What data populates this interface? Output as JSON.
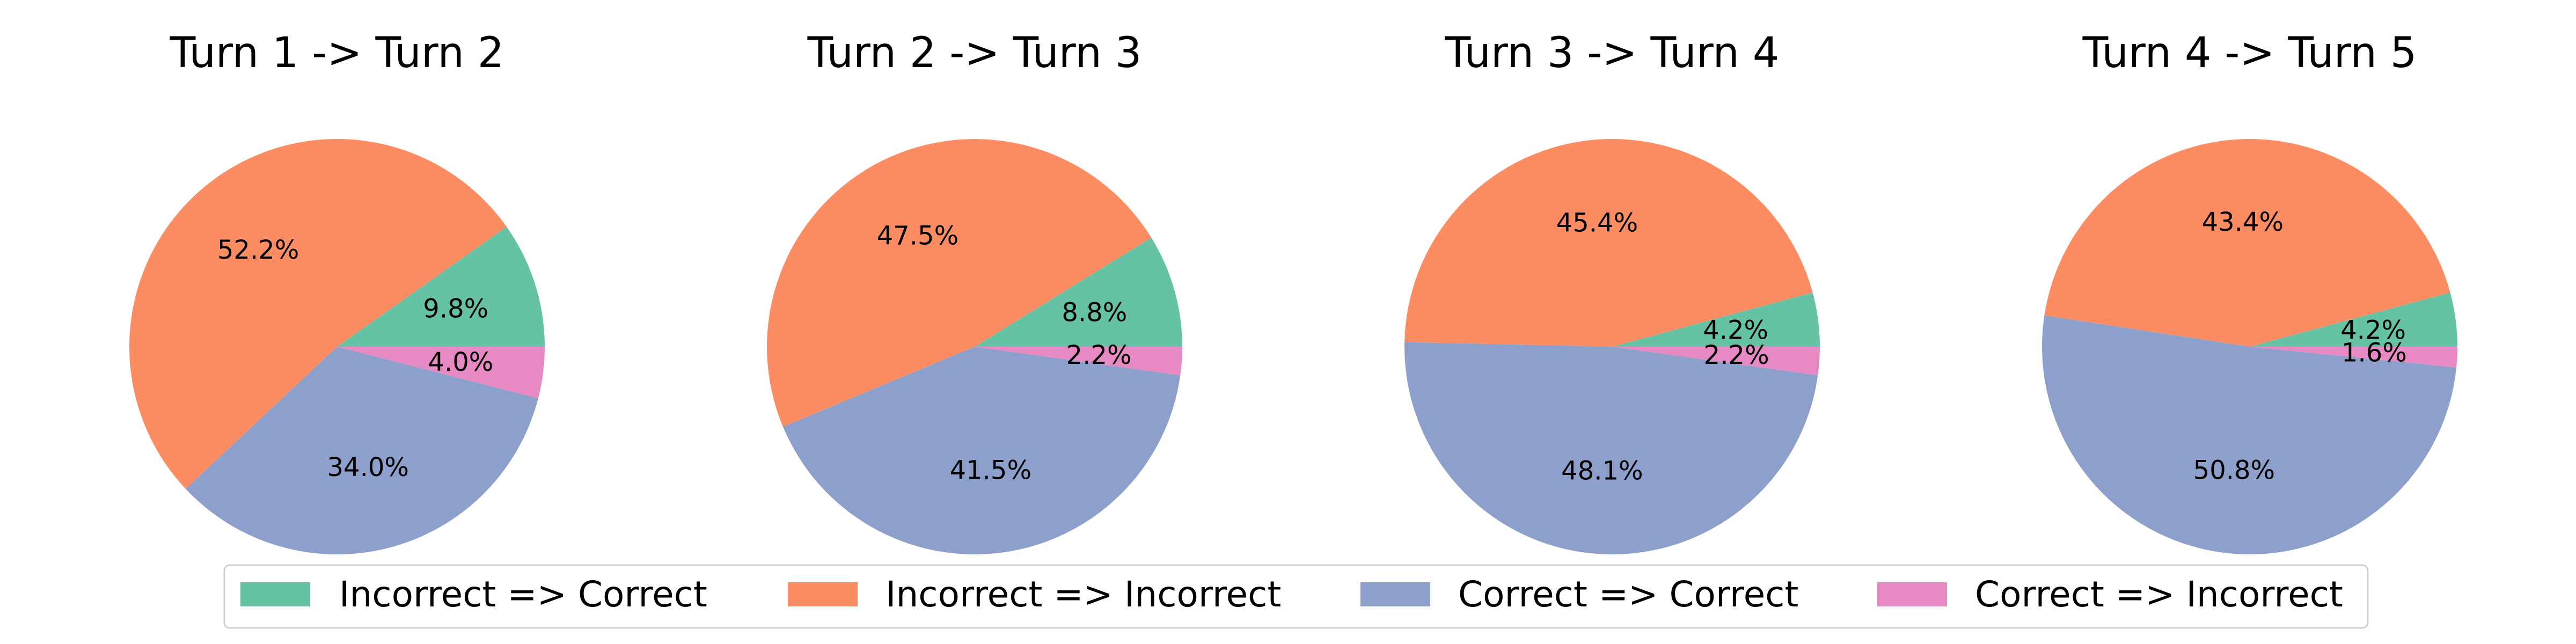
{
  "chart_data": [
    {
      "type": "pie",
      "title": "Turn 1 -> Turn 2",
      "start_angle": 0,
      "labels": [
        "Incorrect => Correct",
        "Incorrect => Incorrect",
        "Correct => Correct",
        "Correct => Incorrect"
      ],
      "values": [
        9.8,
        52.2,
        34.0,
        4.0
      ],
      "value_labels": [
        "9.8%",
        "52.2%",
        "34.0%",
        "4.0%"
      ]
    },
    {
      "type": "pie",
      "title": "Turn 2 -> Turn 3",
      "start_angle": 0,
      "labels": [
        "Incorrect => Correct",
        "Incorrect => Incorrect",
        "Correct => Correct",
        "Correct => Incorrect"
      ],
      "values": [
        8.8,
        47.5,
        41.5,
        2.2
      ],
      "value_labels": [
        "8.8%",
        "47.5%",
        "41.5%",
        "2.2%"
      ]
    },
    {
      "type": "pie",
      "title": "Turn 3 -> Turn 4",
      "start_angle": 0,
      "labels": [
        "Incorrect => Correct",
        "Incorrect => Incorrect",
        "Correct => Correct",
        "Correct => Incorrect"
      ],
      "values": [
        4.2,
        45.4,
        48.1,
        2.2
      ],
      "value_labels": [
        "4.2%",
        "45.4%",
        "48.1%",
        "2.2%"
      ]
    },
    {
      "type": "pie",
      "title": "Turn 4 -> Turn 5",
      "start_angle": 0,
      "labels": [
        "Incorrect => Correct",
        "Incorrect => Incorrect",
        "Correct => Correct",
        "Correct => Incorrect"
      ],
      "values": [
        4.2,
        43.4,
        50.8,
        1.6
      ],
      "value_labels": [
        "4.2%",
        "43.4%",
        "50.8%",
        "1.6%"
      ]
    }
  ],
  "legend": {
    "placement": "bottom-center",
    "items": [
      {
        "label": "Incorrect => Correct",
        "color": "#66c2a5"
      },
      {
        "label": "Incorrect => Incorrect",
        "color": "#fc8d62"
      },
      {
        "label": "Correct => Correct",
        "color": "#8da0cb"
      },
      {
        "label": "Correct => Incorrect",
        "color": "#e78ac3"
      }
    ]
  },
  "colors": [
    "#66c2a5",
    "#fc8d62",
    "#8da0cb",
    "#e78ac3"
  ]
}
